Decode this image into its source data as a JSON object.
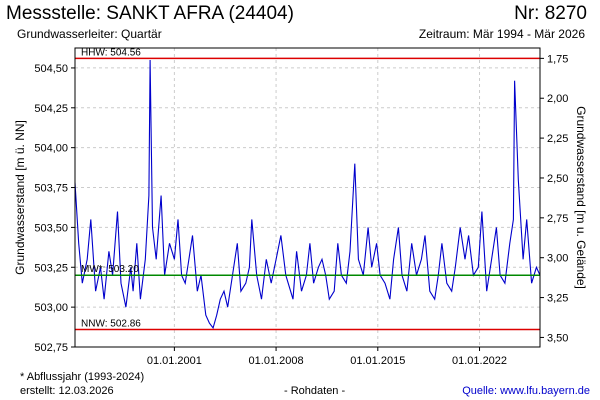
{
  "header": {
    "title": "Messstelle: SANKT AFRA (24404)",
    "number": "Nr: 8270",
    "aquifer": "Grundwasserleiter: Quartär",
    "period": "Zeitraum: Mär 1994 - Mär 2026"
  },
  "footer": {
    "note": "* Abflussjahr (1993-2024)",
    "created": "erstellt:  12.03.2026",
    "raw": "- Rohdaten -",
    "source_label": "Quelle: ",
    "source_link": "www.lfu.bayern.de"
  },
  "colors": {
    "series": "#0000cc",
    "hhw": "#dd0000",
    "nnw": "#dd0000",
    "mw": "#008800",
    "grid": "#cccccc"
  },
  "chart_data": {
    "type": "line",
    "title": "",
    "ylabel": "Grundwasserstand [m ü. NN]",
    "ylabel_right": "Grundwasserstand [m u. Gelände]",
    "ylim": [
      502.75,
      504.625
    ],
    "ylim_right": [
      3.56,
      1.685
    ],
    "xlim": [
      "1994-03-01",
      "2026-03-01"
    ],
    "y_ticks": [
      "502,75",
      "503,00",
      "503,25",
      "503,50",
      "503,75",
      "504,00",
      "504,25",
      "504,50"
    ],
    "y_tick_values": [
      502.75,
      503.0,
      503.25,
      503.5,
      503.75,
      504.0,
      504.25,
      504.5
    ],
    "y_right_ticks": [
      "1,75",
      "2,00",
      "2,25",
      "2,50",
      "2,75",
      "3,00",
      "3,25",
      "3,50"
    ],
    "y_right_tick_values": [
      1.75,
      2.0,
      2.25,
      2.5,
      2.75,
      3.0,
      3.25,
      3.5
    ],
    "x_ticks": [
      "01.01.2001",
      "01.01.2008",
      "01.01.2015",
      "01.01.2022"
    ],
    "x_tick_dates": [
      "2001-01-01",
      "2008-01-01",
      "2015-01-01",
      "2022-01-01"
    ],
    "grid": true,
    "reference_lines": [
      {
        "label": "HHW: 504.56",
        "value": 504.56
      },
      {
        "label": "MW*: 503.20",
        "value": 503.2
      },
      {
        "label": "NNW: 502.86",
        "value": 502.86
      }
    ],
    "series": [
      {
        "x": [
          "1994-03-01",
          "1994-06-01",
          "1994-09-01",
          "1995-01-01",
          "1995-04-01",
          "1995-08-01",
          "1995-12-01",
          "1996-03-01",
          "1996-07-01",
          "1996-10-01",
          "1997-02-01",
          "1997-05-01",
          "1997-09-01",
          "1998-01-01",
          "1998-03-01",
          "1998-06-01",
          "1998-09-01",
          "1999-01-01",
          "1999-04-01",
          "1999-05-01",
          "1999-07-01",
          "1999-10-01",
          "2000-02-01",
          "2000-05-01",
          "2000-09-01",
          "2001-01-01",
          "2001-04-01",
          "2001-07-01",
          "2001-10-01",
          "2002-01-01",
          "2002-04-01",
          "2002-08-01",
          "2002-11-01",
          "2003-03-01",
          "2003-06-01",
          "2003-09-01",
          "2003-12-01",
          "2004-03-01",
          "2004-06-01",
          "2004-09-01",
          "2005-01-01",
          "2005-05-01",
          "2005-08-01",
          "2005-12-01",
          "2006-03-01",
          "2006-05-01",
          "2006-09-01",
          "2007-01-01",
          "2007-05-01",
          "2007-09-01",
          "2008-01-01",
          "2008-05-01",
          "2008-09-01",
          "2009-01-01",
          "2009-03-01",
          "2009-06-01",
          "2009-10-01",
          "2010-02-01",
          "2010-05-01",
          "2010-08-01",
          "2010-12-01",
          "2011-03-01",
          "2011-06-01",
          "2011-09-01",
          "2012-01-01",
          "2012-04-01",
          "2012-07-01",
          "2012-11-01",
          "2013-02-01",
          "2013-06-01",
          "2013-09-01",
          "2014-01-01",
          "2014-05-01",
          "2014-08-01",
          "2014-12-01",
          "2015-03-01",
          "2015-07-01",
          "2015-11-01",
          "2016-02-01",
          "2016-06-01",
          "2016-09-01",
          "2017-01-01",
          "2017-05-01",
          "2017-09-01",
          "2018-01-01",
          "2018-04-01",
          "2018-08-01",
          "2018-12-01",
          "2019-03-01",
          "2019-06-01",
          "2019-10-01",
          "2020-02-01",
          "2020-05-01",
          "2020-09-01",
          "2021-01-01",
          "2021-04-01",
          "2021-08-01",
          "2021-12-01",
          "2022-03-01",
          "2022-07-01",
          "2022-11-01",
          "2023-03-01",
          "2023-06-01",
          "2023-10-01",
          "2024-02-01",
          "2024-05-01",
          "2024-06-01",
          "2024-09-01",
          "2025-01-01",
          "2025-04-01",
          "2025-08-01",
          "2025-12-01",
          "2026-03-01"
        ],
        "y": [
          503.78,
          503.4,
          503.15,
          503.3,
          503.55,
          503.1,
          503.25,
          503.05,
          503.35,
          503.2,
          503.6,
          503.15,
          503.0,
          503.25,
          503.1,
          503.4,
          503.05,
          503.3,
          503.7,
          504.55,
          503.5,
          503.3,
          503.7,
          503.2,
          503.4,
          503.3,
          503.55,
          503.2,
          503.15,
          503.3,
          503.45,
          503.1,
          503.2,
          502.95,
          502.9,
          502.87,
          502.95,
          503.05,
          503.1,
          503.0,
          503.2,
          503.4,
          503.1,
          503.15,
          503.25,
          503.55,
          503.2,
          503.05,
          503.3,
          503.15,
          503.3,
          503.45,
          503.2,
          503.1,
          503.05,
          503.35,
          503.1,
          503.2,
          503.4,
          503.15,
          503.25,
          503.3,
          503.2,
          503.05,
          503.1,
          503.4,
          503.2,
          503.15,
          503.35,
          503.9,
          503.3,
          503.2,
          503.5,
          503.25,
          503.4,
          503.2,
          503.15,
          503.05,
          503.3,
          503.5,
          503.2,
          503.1,
          503.4,
          503.2,
          503.3,
          503.45,
          503.1,
          503.05,
          503.2,
          503.4,
          503.15,
          503.1,
          503.25,
          503.5,
          503.3,
          503.45,
          503.2,
          503.25,
          503.6,
          503.1,
          503.3,
          503.5,
          503.2,
          503.15,
          503.4,
          503.55,
          504.42,
          503.8,
          503.3,
          503.55,
          503.15,
          503.25,
          503.2
        ]
      }
    ]
  }
}
